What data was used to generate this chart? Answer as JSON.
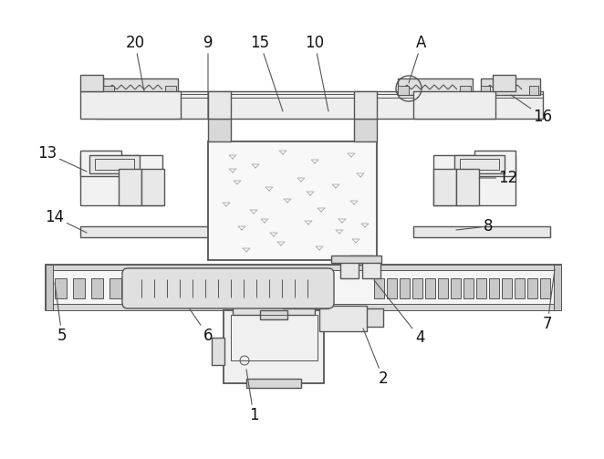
{
  "bg_color": "#ffffff",
  "lc": "#555555",
  "figsize": [
    6.62,
    5.03
  ],
  "dpi": 100
}
